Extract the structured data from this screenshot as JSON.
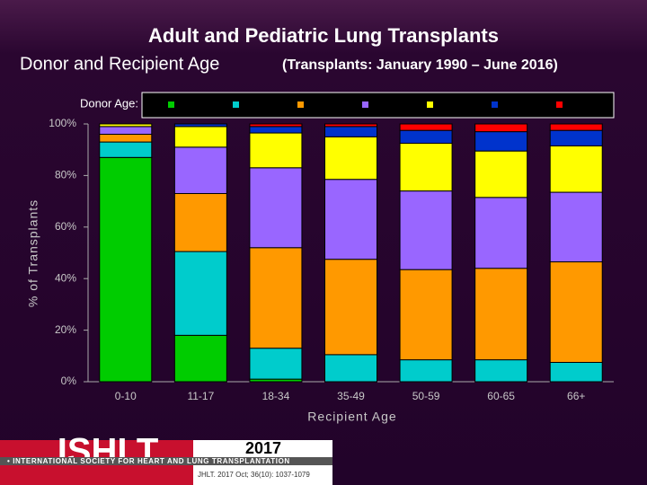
{
  "chart_data": {
    "type": "stacked_bar",
    "title": "Adult and Pediatric Lung Transplants",
    "subtitle": "Donor and Recipient Age",
    "subtitle_note": "(Transplants: January 1990 – June 2016)",
    "legend_title": "Donor Age:",
    "y_label": "% of Transplants",
    "x_label": "Recipient Age",
    "categories": [
      "0-10",
      "11-17",
      "18-34",
      "35-49",
      "50-59",
      "60-65",
      "66+"
    ],
    "series": [
      {
        "color": "#00cc00",
        "values": [
          87,
          18,
          1,
          0,
          0,
          0,
          0
        ]
      },
      {
        "color": "#00cccc",
        "values": [
          6,
          32.5,
          12,
          10.5,
          8.5,
          8.5,
          7.5
        ]
      },
      {
        "color": "#ff9900",
        "values": [
          3,
          22.5,
          39,
          37,
          35,
          35.5,
          39
        ]
      },
      {
        "color": "#9966ff",
        "values": [
          3,
          18,
          31,
          31,
          30.5,
          27.5,
          27
        ]
      },
      {
        "color": "#ffff00",
        "values": [
          1,
          8,
          13.5,
          16.5,
          18.5,
          18,
          18
        ]
      },
      {
        "color": "#0033cc",
        "values": [
          0,
          1,
          2.5,
          4,
          5,
          7.5,
          6
        ]
      },
      {
        "color": "#ff0000",
        "values": [
          0,
          0,
          1,
          1,
          2.5,
          3,
          2.5
        ]
      }
    ],
    "ylim": [
      0,
      100
    ],
    "yticks": [
      {
        "value": 0,
        "label": "0%"
      },
      {
        "value": 20,
        "label": "20%"
      },
      {
        "value": 40,
        "label": "40%"
      },
      {
        "value": 60,
        "label": "60%"
      },
      {
        "value": 80,
        "label": "80%"
      },
      {
        "value": 100,
        "label": "100%"
      }
    ]
  },
  "footer": {
    "logo": "ISHLT",
    "society": "• INTERNATIONAL SOCIETY FOR HEART AND LUNG TRANSPLANTATION",
    "year": "2017",
    "citation": "JHLT. 2017 Oct; 36(10): 1037-1079"
  }
}
